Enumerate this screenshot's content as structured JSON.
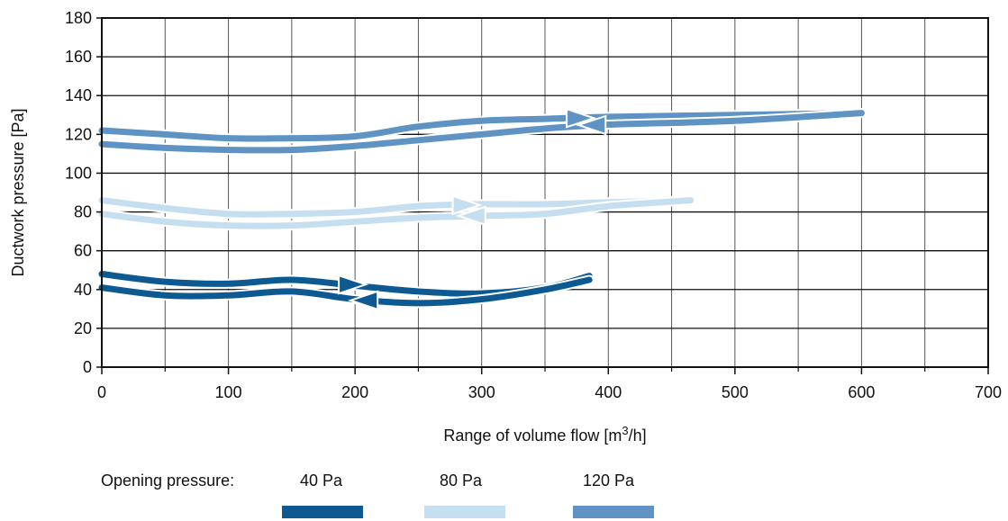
{
  "chart_data": {
    "type": "line",
    "xlabel_main": "Range of volume flow [m",
    "xlabel_sup": "3",
    "xlabel_tail": "/h]",
    "ylabel": "Ductwork pressure [Pa]",
    "xlim": [
      0,
      700
    ],
    "ylim": [
      0,
      180
    ],
    "x_ticks": [
      "0",
      "100",
      "200",
      "300",
      "400",
      "500",
      "600",
      "700"
    ],
    "y_ticks": [
      "0",
      "20",
      "40",
      "60",
      "80",
      "100",
      "120",
      "140",
      "160",
      "180"
    ],
    "grid": true,
    "legend": {
      "title": "Opening pressure:",
      "placement": "bottom",
      "items": [
        {
          "label": "40 Pa",
          "color": "#0d5a93"
        },
        {
          "label": "80 Pa",
          "color": "#c6dff0"
        },
        {
          "label": "120 Pa",
          "color": "#5e93c4"
        }
      ]
    },
    "series": [
      {
        "name": "40 Pa",
        "color": "#0d5a93",
        "upper": {
          "x": [
            0,
            50,
            100,
            150,
            200,
            250,
            300,
            350,
            385
          ],
          "y": [
            48,
            44,
            43,
            45,
            42,
            39,
            38,
            41,
            47
          ]
        },
        "lower": {
          "x": [
            0,
            50,
            100,
            150,
            200,
            250,
            300,
            350,
            385
          ],
          "y": [
            41,
            37,
            37,
            39,
            35,
            33,
            35,
            40,
            45
          ]
        },
        "arrow_forward_x": 190,
        "arrow_back_x": 215
      },
      {
        "name": "80 Pa",
        "color": "#c6dff0",
        "upper": {
          "x": [
            0,
            50,
            100,
            150,
            200,
            250,
            300,
            350,
            400,
            465
          ],
          "y": [
            86,
            82,
            79,
            79,
            80,
            83,
            84,
            84,
            85,
            86
          ]
        },
        "lower": {
          "x": [
            0,
            50,
            100,
            150,
            200,
            250,
            300,
            350,
            400,
            465
          ],
          "y": [
            79,
            75,
            73,
            73,
            75,
            77,
            78,
            79,
            83,
            86
          ]
        },
        "arrow_forward_x": 280,
        "arrow_back_x": 300
      },
      {
        "name": "120 Pa",
        "color": "#5e93c4",
        "upper": {
          "x": [
            0,
            50,
            100,
            150,
            200,
            250,
            300,
            350,
            400,
            500,
            600
          ],
          "y": [
            122,
            120,
            118,
            118,
            119,
            124,
            127,
            128,
            129,
            130,
            131
          ]
        },
        "lower": {
          "x": [
            0,
            50,
            100,
            150,
            200,
            250,
            300,
            350,
            400,
            500,
            600
          ],
          "y": [
            115,
            113,
            112,
            112,
            114,
            117,
            120,
            123,
            125,
            127,
            131
          ]
        },
        "arrow_forward_x": 370,
        "arrow_back_x": 395
      }
    ]
  }
}
